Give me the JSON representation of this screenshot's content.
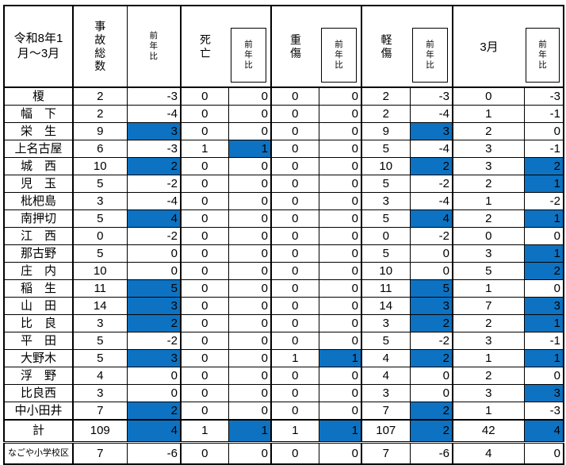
{
  "header": {
    "period_label": "令和8年1\n月～3月",
    "col_total": "事故総数",
    "col_yoy": "前年比",
    "col_deaths": "死亡",
    "col_serious": "重傷",
    "col_minor": "軽傷",
    "col_march": "3月"
  },
  "colors": {
    "highlight": "#0d72c1",
    "border": "#000000"
  },
  "rows": [
    {
      "label": "榎",
      "values": [
        2,
        -3,
        0,
        0,
        0,
        0,
        2,
        -3,
        0,
        -3
      ],
      "highlight": []
    },
    {
      "label": "幅　下",
      "values": [
        2,
        -4,
        0,
        0,
        0,
        0,
        2,
        -4,
        1,
        -1
      ],
      "highlight": []
    },
    {
      "label": "栄　生",
      "values": [
        9,
        3,
        0,
        0,
        0,
        0,
        9,
        3,
        2,
        0
      ],
      "highlight": [
        1,
        7
      ]
    },
    {
      "label": "上名古屋",
      "values": [
        6,
        -3,
        1,
        1,
        0,
        0,
        5,
        -4,
        3,
        -1
      ],
      "highlight": [
        3
      ]
    },
    {
      "label": "城　西",
      "values": [
        10,
        2,
        0,
        0,
        0,
        0,
        10,
        2,
        3,
        2
      ],
      "highlight": [
        1,
        7,
        9
      ]
    },
    {
      "label": "児　玉",
      "values": [
        5,
        -2,
        0,
        0,
        0,
        0,
        5,
        -2,
        2,
        1
      ],
      "highlight": [
        9
      ]
    },
    {
      "label": "枇杷島",
      "values": [
        3,
        -4,
        0,
        0,
        0,
        0,
        3,
        -4,
        1,
        -2
      ],
      "highlight": []
    },
    {
      "label": "南押切",
      "values": [
        5,
        4,
        0,
        0,
        0,
        0,
        5,
        4,
        2,
        1
      ],
      "highlight": [
        1,
        7,
        9
      ]
    },
    {
      "label": "江　西",
      "values": [
        0,
        -2,
        0,
        0,
        0,
        0,
        0,
        -2,
        0,
        0
      ],
      "highlight": []
    },
    {
      "label": "那古野",
      "values": [
        5,
        0,
        0,
        0,
        0,
        0,
        5,
        0,
        3,
        1
      ],
      "highlight": [
        9
      ]
    },
    {
      "label": "庄　内",
      "values": [
        10,
        0,
        0,
        0,
        0,
        0,
        10,
        0,
        5,
        2
      ],
      "highlight": [
        9
      ]
    },
    {
      "label": "稲　生",
      "values": [
        11,
        5,
        0,
        0,
        0,
        0,
        11,
        5,
        1,
        0
      ],
      "highlight": [
        1,
        7
      ]
    },
    {
      "label": "山　田",
      "values": [
        14,
        3,
        0,
        0,
        0,
        0,
        14,
        3,
        7,
        3
      ],
      "highlight": [
        1,
        7,
        9
      ]
    },
    {
      "label": "比　良",
      "values": [
        3,
        2,
        0,
        0,
        0,
        0,
        3,
        2,
        2,
        1
      ],
      "highlight": [
        1,
        7,
        9
      ]
    },
    {
      "label": "平　田",
      "values": [
        5,
        -2,
        0,
        0,
        0,
        0,
        5,
        -2,
        3,
        -1
      ],
      "highlight": []
    },
    {
      "label": "大野木",
      "values": [
        5,
        3,
        0,
        0,
        1,
        1,
        4,
        2,
        1,
        1
      ],
      "highlight": [
        1,
        5,
        7,
        9
      ]
    },
    {
      "label": "浮　野",
      "values": [
        4,
        0,
        0,
        0,
        0,
        0,
        4,
        0,
        2,
        0
      ],
      "highlight": []
    },
    {
      "label": "比良西",
      "values": [
        3,
        0,
        0,
        0,
        0,
        0,
        3,
        0,
        3,
        3
      ],
      "highlight": [
        9
      ]
    },
    {
      "label": "中小田井",
      "values": [
        7,
        2,
        0,
        0,
        0,
        0,
        7,
        2,
        1,
        -3
      ],
      "highlight": [
        1,
        7
      ]
    }
  ],
  "total_row": {
    "label": "計",
    "values": [
      109,
      4,
      1,
      1,
      1,
      1,
      107,
      2,
      42,
      4
    ],
    "highlight": [
      1,
      3,
      5,
      7,
      9
    ]
  },
  "footer_row": {
    "label": "なごや小学校区",
    "values": [
      7,
      -6,
      0,
      0,
      0,
      0,
      7,
      -6,
      4,
      0
    ],
    "highlight": []
  }
}
